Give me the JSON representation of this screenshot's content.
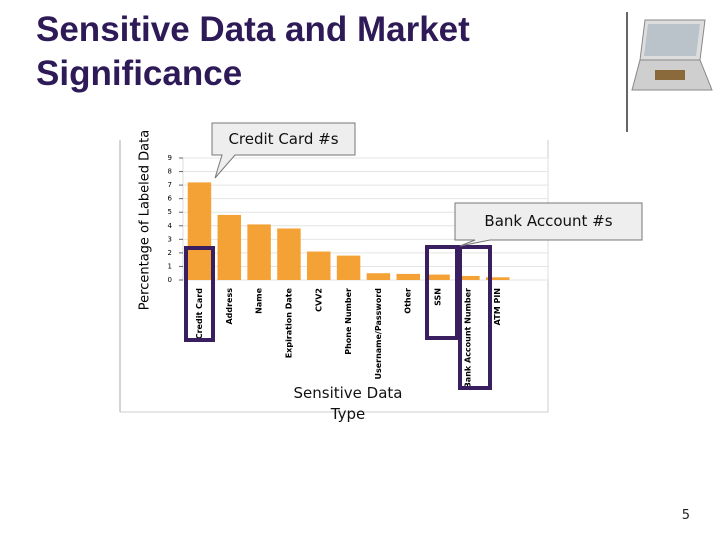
{
  "slide": {
    "title": "Sensitive Data and Market Significance",
    "number": "5"
  },
  "chart_data": {
    "type": "bar",
    "ylabel": "Percentage of Labeled Data",
    "xlabel": "Sensitive Data Type",
    "categories": [
      "Credit Card",
      "Address",
      "Name",
      "Expiration Date",
      "CVV2",
      "Phone Number",
      "Username/Password",
      "Other",
      "SSN",
      "Bank Account Number",
      "ATM PIN"
    ],
    "values": [
      7.2,
      4.8,
      4.1,
      3.8,
      2.1,
      1.8,
      0.5,
      0.45,
      0.4,
      0.3,
      0.2
    ],
    "color": "#f4a236",
    "ylim": [
      0,
      9
    ],
    "yticks": [
      0,
      1,
      2,
      3,
      4,
      5,
      6,
      7,
      8,
      9
    ],
    "grid": true,
    "annotations": [
      "Credit Card #s",
      "Bank Account #s"
    ]
  }
}
